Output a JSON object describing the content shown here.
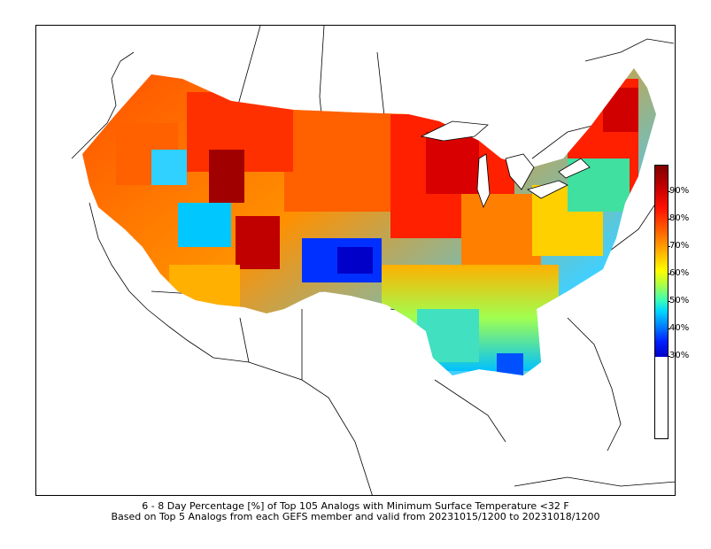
{
  "map": {
    "region": "Continental United States",
    "field": "analog-percentage",
    "colormap": [
      "#0000c8",
      "#0080ff",
      "#00d8ff",
      "#b0ff40",
      "#ffff00",
      "#ffb000",
      "#ff6000",
      "#ff1000",
      "#800000"
    ]
  },
  "colorbar": {
    "ticks": [
      "90%",
      "80%",
      "70%",
      "60%",
      "50%",
      "40%",
      "30%"
    ],
    "range": [
      30,
      100
    ]
  },
  "caption": {
    "line1": "6 - 8 Day Percentage [%] of Top 105 Analogs with Minimum Surface Temperature <32 F",
    "line2": "Based on Top 5 Analogs from each GEFS member and valid from 20231015/1200 to 20231018/1200"
  }
}
